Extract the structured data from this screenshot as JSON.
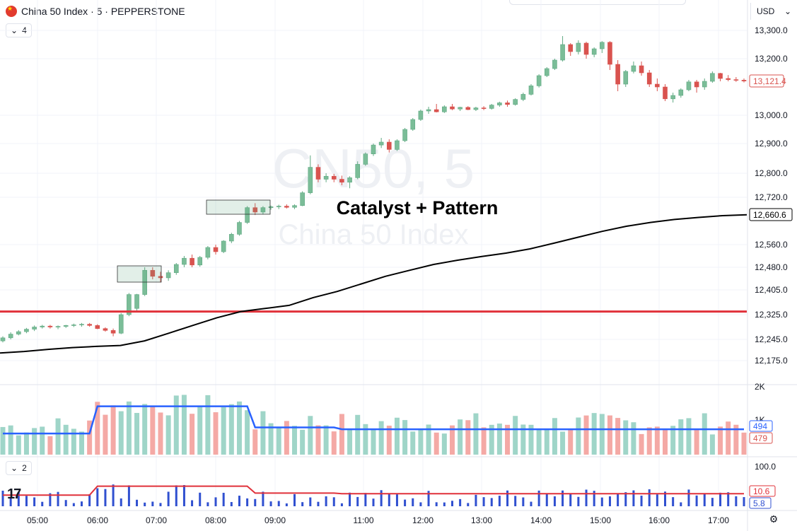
{
  "header": {
    "symbol_title": "China 50 Index · 5 · PEPPERSTONE",
    "currency": "USD",
    "main_pane_indicator_count": "4",
    "lower_pane_indicator_count": "2",
    "watermark_ticker": "CN50, 5",
    "watermark_name": "China 50 Index",
    "annotation": "Catalyst + Pattern"
  },
  "colors": {
    "up": "#5fa982",
    "down": "#d9534f",
    "up_fill": "#7bbd98",
    "vol_up": "#9fd5c8",
    "vol_down": "#f4a9a5",
    "vol_ma": "#2962ff",
    "support_line": "#e0313a",
    "trend_line": "#000000",
    "osc_bars": "#3050d0",
    "osc_line": "#e0313a"
  },
  "chart_data": {
    "type": "candlestick",
    "x_time_labels": [
      "05:00",
      "06:00",
      "07:00",
      "08:00",
      "09:00",
      "11:00",
      "12:00",
      "13:00",
      "14:00",
      "15:00",
      "16:00",
      "17:00"
    ],
    "y_tick_labels": [
      "13,300.0",
      "13,200.0",
      "13,000.0",
      "12,900.0",
      "12,800.0",
      "12,720.0",
      "12,560.0",
      "12,480.0",
      "12,405.0",
      "12,325.0",
      "12,245.0",
      "12,175.0"
    ],
    "price_badges": {
      "last_price": "13,121.4",
      "trend_line_value": "12,660.6"
    },
    "support_level": 12335,
    "candles_ohlc_approx": [
      [
        12240,
        12255,
        12235,
        12250
      ],
      [
        12250,
        12268,
        12245,
        12262
      ],
      [
        12262,
        12275,
        12258,
        12270
      ],
      [
        12270,
        12282,
        12265,
        12278
      ],
      [
        12278,
        12290,
        12272,
        12285
      ],
      [
        12285,
        12292,
        12280,
        12288
      ],
      [
        12288,
        12292,
        12280,
        12285
      ],
      [
        12285,
        12290,
        12278,
        12287
      ],
      [
        12287,
        12292,
        12282,
        12290
      ],
      [
        12290,
        12296,
        12285,
        12292
      ],
      [
        12292,
        12298,
        12286,
        12294
      ],
      [
        12294,
        12298,
        12286,
        12290
      ],
      [
        12290,
        12294,
        12278,
        12280
      ],
      [
        12280,
        12284,
        12270,
        12274
      ],
      [
        12274,
        12280,
        12255,
        12265
      ],
      [
        12265,
        12330,
        12262,
        12325
      ],
      [
        12325,
        12395,
        12320,
        12390
      ],
      [
        12345,
        12392,
        12338,
        12390
      ],
      [
        12390,
        12480,
        12385,
        12470
      ],
      [
        12470,
        12480,
        12440,
        12450
      ],
      [
        12450,
        12465,
        12430,
        12445
      ],
      [
        12445,
        12470,
        12435,
        12462
      ],
      [
        12462,
        12495,
        12455,
        12490
      ],
      [
        12490,
        12520,
        12480,
        12512
      ],
      [
        12512,
        12525,
        12480,
        12488
      ],
      [
        12488,
        12520,
        12482,
        12515
      ],
      [
        12515,
        12555,
        12508,
        12550
      ],
      [
        12550,
        12560,
        12525,
        12535
      ],
      [
        12535,
        12575,
        12530,
        12572
      ],
      [
        12572,
        12600,
        12565,
        12595
      ],
      [
        12595,
        12640,
        12590,
        12635
      ],
      [
        12635,
        12690,
        12630,
        12685
      ],
      [
        12685,
        12700,
        12660,
        12670
      ],
      [
        12670,
        12690,
        12662,
        12685
      ],
      [
        12685,
        12692,
        12678,
        12688
      ],
      [
        12688,
        12695,
        12680,
        12690
      ],
      [
        12690,
        12696,
        12682,
        12686
      ],
      [
        12686,
        12696,
        12680,
        12692
      ],
      [
        12692,
        12740,
        12690,
        12735
      ],
      [
        12735,
        12860,
        12730,
        12820
      ],
      [
        12820,
        12830,
        12770,
        12780
      ],
      [
        12780,
        12800,
        12770,
        12790
      ],
      [
        12790,
        12798,
        12770,
        12780
      ],
      [
        12780,
        12792,
        12760,
        12770
      ],
      [
        12770,
        12790,
        12750,
        12785
      ],
      [
        12785,
        12840,
        12780,
        12830
      ],
      [
        12830,
        12870,
        12825,
        12865
      ],
      [
        12865,
        12900,
        12858,
        12895
      ],
      [
        12895,
        12920,
        12885,
        12905
      ],
      [
        12905,
        12915,
        12870,
        12880
      ],
      [
        12880,
        12915,
        12875,
        12910
      ],
      [
        12910,
        12955,
        12905,
        12950
      ],
      [
        12950,
        12990,
        12945,
        12985
      ],
      [
        12985,
        13020,
        12980,
        13015
      ],
      [
        13015,
        13030,
        13005,
        13020
      ],
      [
        13020,
        13040,
        13010,
        13012
      ],
      [
        13012,
        13035,
        13008,
        13030
      ],
      [
        13030,
        13040,
        13018,
        13022
      ],
      [
        13022,
        13030,
        13015,
        13028
      ],
      [
        13028,
        13032,
        13018,
        13020
      ],
      [
        13020,
        13030,
        13015,
        13026
      ],
      [
        13026,
        13032,
        13018,
        13024
      ],
      [
        13024,
        13040,
        13020,
        13036
      ],
      [
        13036,
        13048,
        13030,
        13044
      ],
      [
        13044,
        13052,
        13030,
        13038
      ],
      [
        13038,
        13060,
        13034,
        13056
      ],
      [
        13056,
        13080,
        13050,
        13074
      ],
      [
        13074,
        13110,
        13070,
        13104
      ],
      [
        13104,
        13145,
        13098,
        13140
      ],
      [
        13140,
        13170,
        13135,
        13165
      ],
      [
        13165,
        13200,
        13160,
        13195
      ],
      [
        13195,
        13280,
        13190,
        13250
      ],
      [
        13250,
        13255,
        13210,
        13225
      ],
      [
        13225,
        13265,
        13215,
        13255
      ],
      [
        13255,
        13260,
        13200,
        13215
      ],
      [
        13215,
        13240,
        13205,
        13235
      ],
      [
        13235,
        13262,
        13220,
        13258
      ],
      [
        13258,
        13262,
        13160,
        13180
      ],
      [
        13180,
        13195,
        13085,
        13110
      ],
      [
        13110,
        13160,
        13100,
        13155
      ],
      [
        13155,
        13190,
        13148,
        13175
      ],
      [
        13175,
        13190,
        13140,
        13150
      ],
      [
        13150,
        13160,
        13100,
        13110
      ],
      [
        13110,
        13130,
        13085,
        13100
      ],
      [
        13100,
        13110,
        13050,
        13058
      ],
      [
        13058,
        13080,
        13045,
        13070
      ],
      [
        13070,
        13095,
        13062,
        13090
      ],
      [
        13090,
        13125,
        13085,
        13118
      ],
      [
        13118,
        13125,
        13080,
        13100
      ],
      [
        13100,
        13130,
        13090,
        13120
      ],
      [
        13120,
        13155,
        13115,
        13148
      ],
      [
        13148,
        13150,
        13120,
        13130
      ],
      [
        13130,
        13142,
        13120,
        13126
      ],
      [
        13126,
        13135,
        13118,
        13124
      ],
      [
        13124,
        13130,
        13116,
        13121
      ]
    ],
    "trend_line_approx": [
      12200,
      12205,
      12212,
      12218,
      12222,
      12225,
      12240,
      12265,
      12290,
      12315,
      12335,
      12345,
      12355,
      12380,
      12400,
      12425,
      12450,
      12470,
      12490,
      12505,
      12518,
      12530,
      12545,
      12565,
      12585,
      12605,
      12622,
      12635,
      12645,
      12652,
      12658,
      12661
    ],
    "volume_axis_labels": [
      "2K",
      "1K"
    ],
    "volume_badges": {
      "volume_ma": "494",
      "volume": "479"
    },
    "oscillator_axis_labels": [
      "100.0"
    ],
    "oscillator_badges": {
      "line_value": "10.6",
      "bar_value": "5.8"
    },
    "highlight_boxes": [
      "consolidation-1",
      "consolidation-2"
    ]
  }
}
